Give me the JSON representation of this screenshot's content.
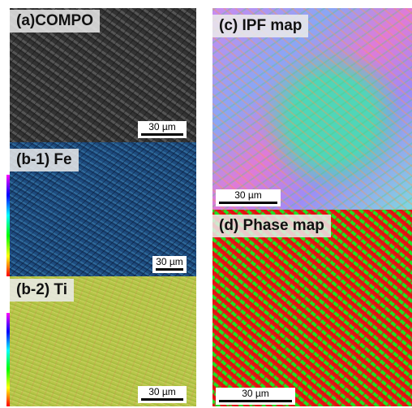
{
  "panels": [
    {
      "label": "(a)COMPO",
      "scale_bar": "30 µm"
    },
    {
      "label": "(b-1) Fe",
      "scale_bar": "30 µm"
    },
    {
      "label": "(b-2) Ti",
      "scale_bar": "30 µm"
    },
    {
      "label": "(c) IPF map",
      "scale_bar": "30 µm"
    },
    {
      "label": "(d) Phase map",
      "scale_bar": "30 µm"
    }
  ]
}
